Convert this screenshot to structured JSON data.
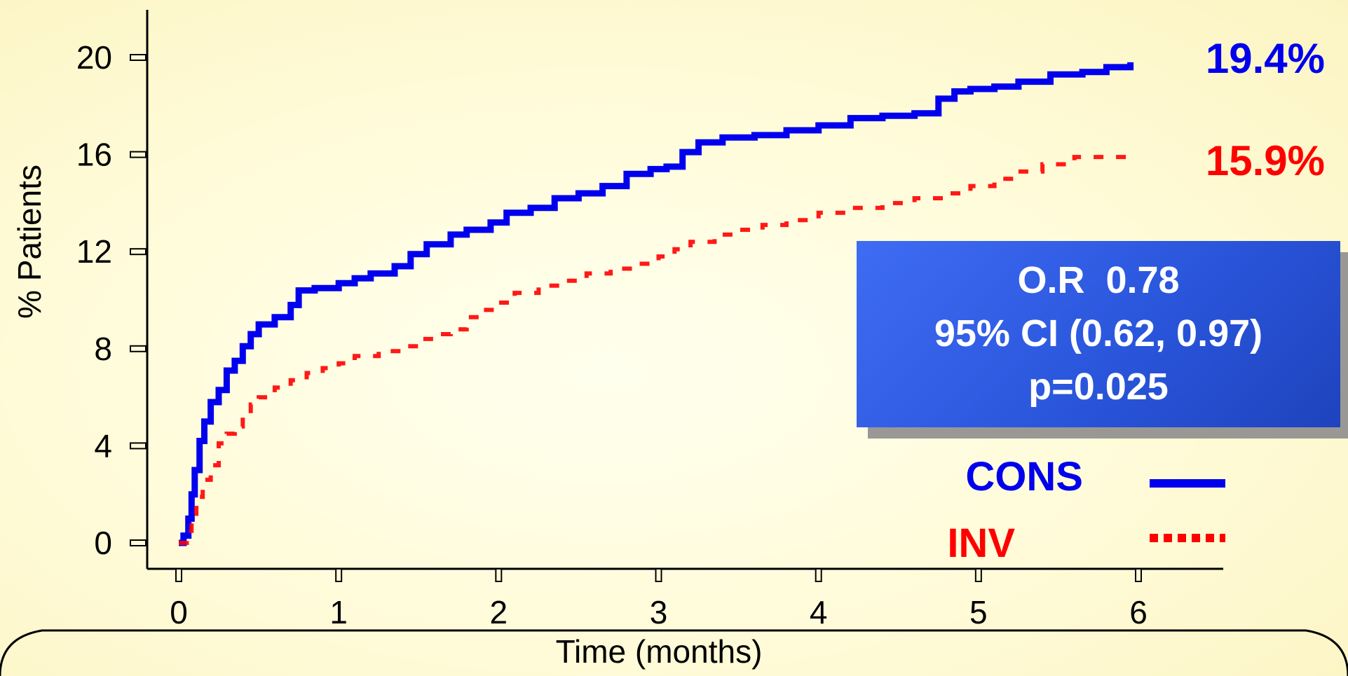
{
  "chart_data": {
    "type": "line",
    "title": "",
    "xlabel": "Time (months)",
    "ylabel": "% Patients",
    "xlim": [
      0,
      6
    ],
    "ylim": [
      0,
      20
    ],
    "x_ticks": [
      "0",
      "1",
      "2",
      "3",
      "4",
      "5",
      "6"
    ],
    "y_ticks": [
      "0",
      "4",
      "8",
      "12",
      "16",
      "20"
    ],
    "grid": false,
    "legend_position": "lower-right",
    "series": [
      {
        "name": "CONS",
        "color": "#0000ee",
        "style": "solid",
        "end_label": "19.4%",
        "x": [
          0,
          0.03,
          0.06,
          0.08,
          0.1,
          0.13,
          0.16,
          0.2,
          0.25,
          0.3,
          0.35,
          0.4,
          0.45,
          0.5,
          0.6,
          0.7,
          0.75,
          0.85,
          1.0,
          1.1,
          1.2,
          1.35,
          1.45,
          1.55,
          1.7,
          1.8,
          1.95,
          2.05,
          2.2,
          2.35,
          2.5,
          2.65,
          2.8,
          2.95,
          3.05,
          3.15,
          3.25,
          3.4,
          3.6,
          3.8,
          4.0,
          4.2,
          4.4,
          4.6,
          4.75,
          4.85,
          4.95,
          5.1,
          5.25,
          5.45,
          5.65,
          5.8,
          5.95
        ],
        "y": [
          0,
          0.3,
          1,
          2,
          3,
          4.2,
          5,
          5.8,
          6.3,
          7.1,
          7.5,
          8.1,
          8.6,
          9,
          9.3,
          9.8,
          10.4,
          10.5,
          10.7,
          10.9,
          11.1,
          11.4,
          11.9,
          12.3,
          12.7,
          12.9,
          13.2,
          13.6,
          13.8,
          14.2,
          14.4,
          14.7,
          15.2,
          15.4,
          15.5,
          16.1,
          16.5,
          16.7,
          16.8,
          17.0,
          17.2,
          17.5,
          17.6,
          17.7,
          18.3,
          18.6,
          18.7,
          18.8,
          19.0,
          19.3,
          19.4,
          19.6,
          19.8
        ]
      },
      {
        "name": "INV",
        "color": "#ff0000",
        "style": "dotted",
        "end_label": "15.9%",
        "x": [
          0,
          0.05,
          0.08,
          0.11,
          0.15,
          0.2,
          0.25,
          0.3,
          0.35,
          0.4,
          0.45,
          0.5,
          0.6,
          0.7,
          0.8,
          0.9,
          1.0,
          1.1,
          1.25,
          1.4,
          1.5,
          1.6,
          1.7,
          1.8,
          1.9,
          2.0,
          2.1,
          2.25,
          2.4,
          2.55,
          2.7,
          2.85,
          3.0,
          3.1,
          3.2,
          3.35,
          3.5,
          3.65,
          3.8,
          4.0,
          4.2,
          4.4,
          4.6,
          4.8,
          4.95,
          5.1,
          5.25,
          5.4,
          5.6,
          5.8,
          5.95
        ],
        "y": [
          0,
          0.5,
          1.2,
          1.9,
          2.6,
          3.2,
          4.1,
          4.5,
          4.8,
          5.3,
          5.7,
          6.0,
          6.4,
          6.7,
          7.0,
          7.2,
          7.4,
          7.7,
          7.9,
          8.1,
          8.4,
          8.6,
          8.8,
          9.3,
          9.6,
          9.9,
          10.3,
          10.6,
          10.8,
          11.1,
          11.3,
          11.5,
          11.8,
          12.1,
          12.4,
          12.7,
          12.9,
          13.1,
          13.3,
          13.6,
          13.8,
          14.0,
          14.2,
          14.4,
          14.7,
          15.0,
          15.3,
          15.6,
          15.9,
          15.9,
          16.0
        ]
      }
    ],
    "annotations": [
      "O.R  0.78",
      "95% CI (0.62, 0.97)",
      "p=0.025"
    ]
  }
}
